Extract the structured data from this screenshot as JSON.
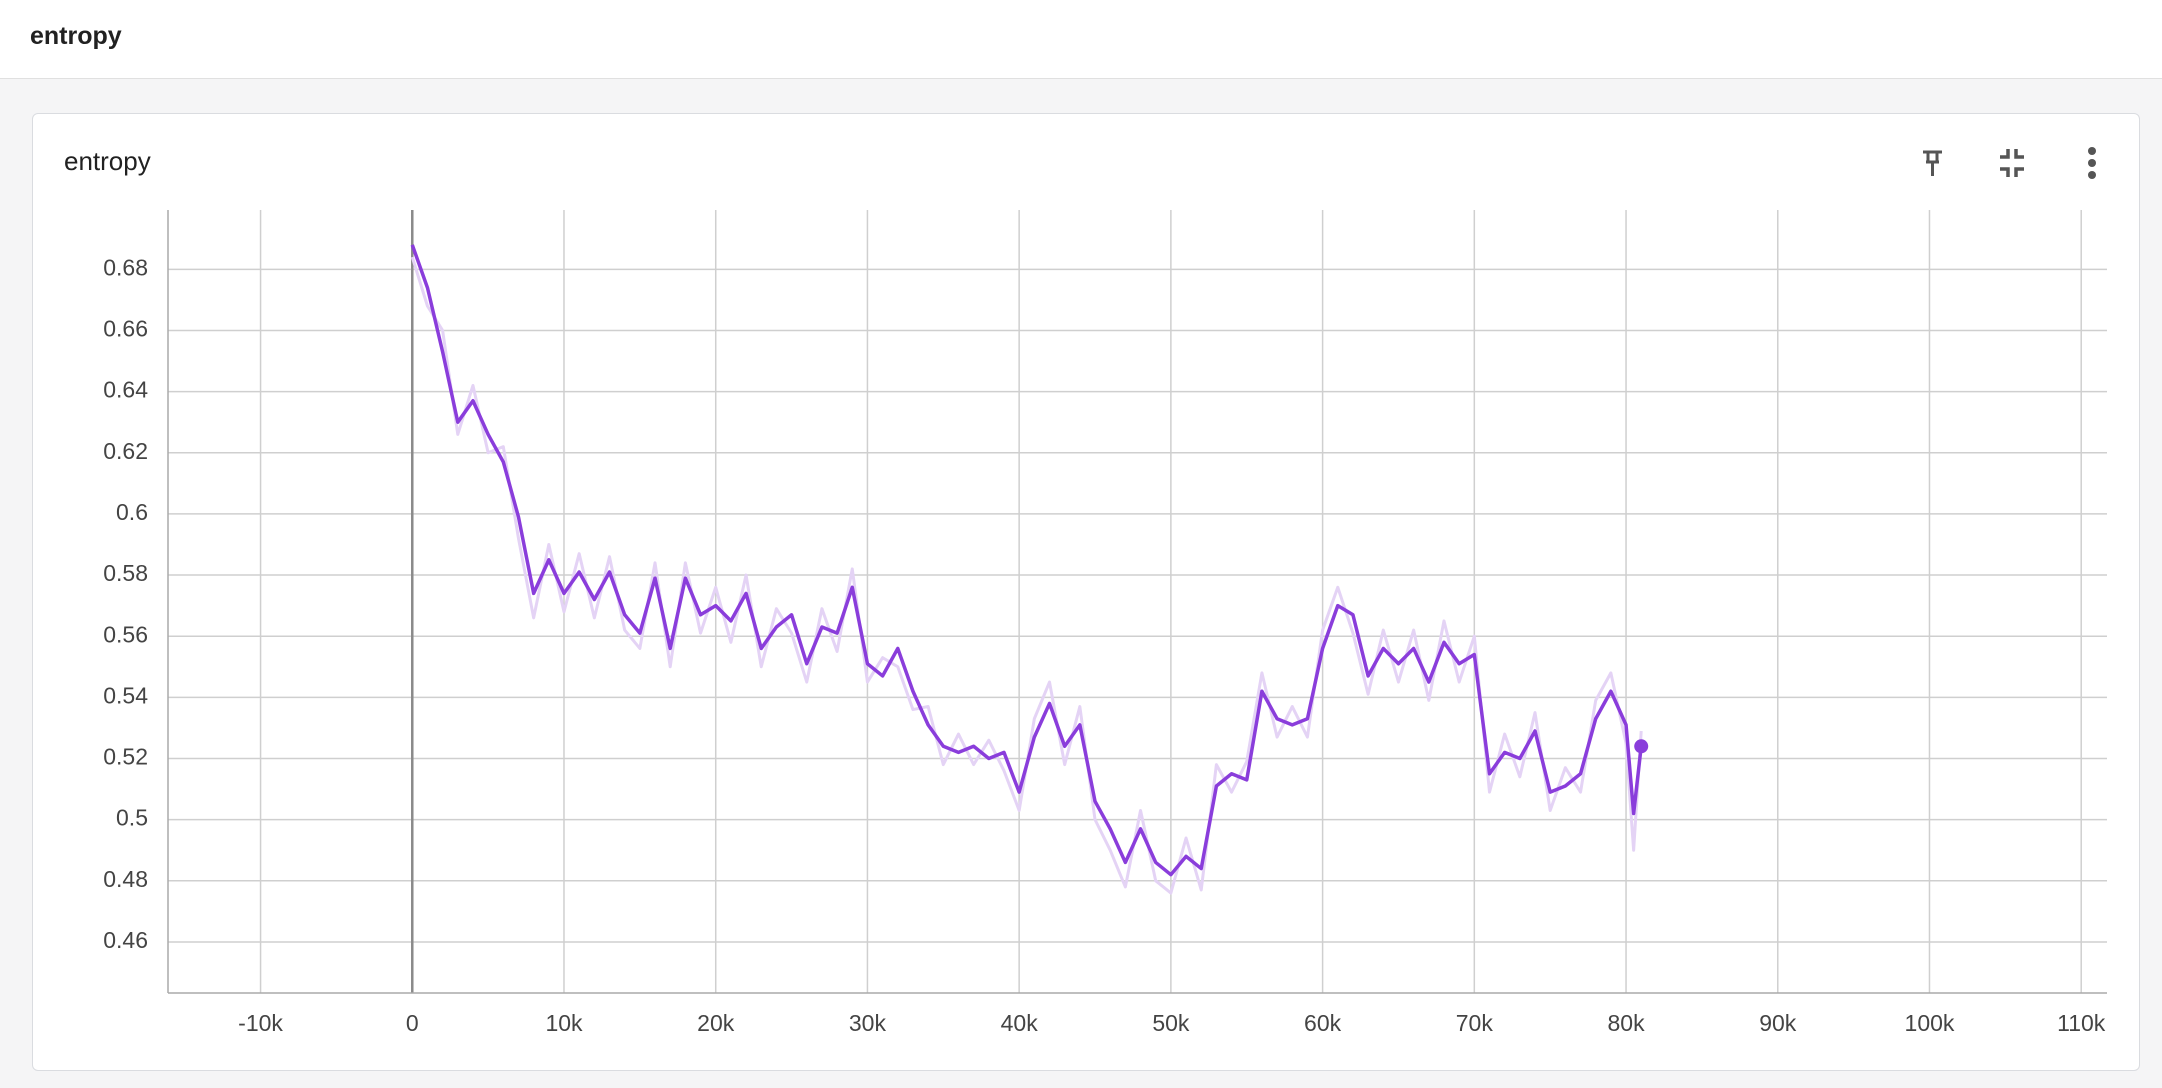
{
  "header": {
    "title": "entropy"
  },
  "chart_data": {
    "type": "line",
    "title": "entropy",
    "x": [
      0,
      1000,
      2000,
      3000,
      4000,
      5000,
      6000,
      7000,
      8000,
      9000,
      10000,
      11000,
      12000,
      13000,
      14000,
      15000,
      16000,
      17000,
      18000,
      19000,
      20000,
      21000,
      22000,
      23000,
      24000,
      25000,
      26000,
      27000,
      28000,
      29000,
      30000,
      31000,
      32000,
      33000,
      34000,
      35000,
      36000,
      37000,
      38000,
      39000,
      40000,
      41000,
      42000,
      43000,
      44000,
      45000,
      46000,
      47000,
      48000,
      49000,
      50000,
      51000,
      52000,
      53000,
      54000,
      55000,
      56000,
      57000,
      58000,
      59000,
      60000,
      61000,
      62000,
      63000,
      64000,
      65000,
      66000,
      67000,
      68000,
      69000,
      70000,
      71000,
      72000,
      73000,
      74000,
      75000,
      76000,
      77000,
      78000,
      79000,
      80000,
      80500,
      81000
    ],
    "series": [
      {
        "color": "#e4d3f5",
        "values": [
          0.684,
          0.668,
          0.66,
          0.626,
          0.642,
          0.62,
          0.622,
          0.592,
          0.566,
          0.59,
          0.568,
          0.587,
          0.566,
          0.586,
          0.562,
          0.556,
          0.584,
          0.55,
          0.584,
          0.561,
          0.576,
          0.558,
          0.58,
          0.55,
          0.569,
          0.561,
          0.545,
          0.569,
          0.555,
          0.582,
          0.545,
          0.553,
          0.55,
          0.536,
          0.537,
          0.518,
          0.528,
          0.518,
          0.526,
          0.516,
          0.503,
          0.533,
          0.545,
          0.518,
          0.537,
          0.5,
          0.49,
          0.478,
          0.503,
          0.48,
          0.476,
          0.494,
          0.477,
          0.518,
          0.509,
          0.519,
          0.548,
          0.527,
          0.537,
          0.527,
          0.562,
          0.576,
          0.561,
          0.541,
          0.562,
          0.545,
          0.562,
          0.539,
          0.565,
          0.545,
          0.56,
          0.509,
          0.528,
          0.514,
          0.535,
          0.503,
          0.517,
          0.509,
          0.539,
          0.548,
          0.525,
          0.49,
          0.529
        ]
      },
      {
        "color": "#8a3ddb",
        "values": [
          0.688,
          0.674,
          0.653,
          0.63,
          0.637,
          0.626,
          0.617,
          0.599,
          0.574,
          0.585,
          0.574,
          0.581,
          0.572,
          0.581,
          0.567,
          0.561,
          0.579,
          0.556,
          0.579,
          0.567,
          0.57,
          0.565,
          0.574,
          0.556,
          0.563,
          0.567,
          0.551,
          0.563,
          0.561,
          0.576,
          0.551,
          0.547,
          0.556,
          0.542,
          0.531,
          0.524,
          0.522,
          0.524,
          0.52,
          0.522,
          0.509,
          0.527,
          0.538,
          0.524,
          0.531,
          0.506,
          0.497,
          0.486,
          0.497,
          0.486,
          0.482,
          0.488,
          0.484,
          0.511,
          0.515,
          0.513,
          0.542,
          0.533,
          0.531,
          0.533,
          0.556,
          0.57,
          0.567,
          0.547,
          0.556,
          0.551,
          0.556,
          0.545,
          0.558,
          0.551,
          0.554,
          0.515,
          0.522,
          0.52,
          0.529,
          0.509,
          0.511,
          0.515,
          0.533,
          0.542,
          0.531,
          0.502,
          0.524
        ]
      }
    ],
    "xlim": [
      -16100,
      111700
    ],
    "ylim": [
      0.4433,
      0.6994
    ],
    "xticks": [
      {
        "value": -10000,
        "label": "-10k"
      },
      0,
      {
        "value": 10000,
        "label": "10k"
      },
      {
        "value": 20000,
        "label": "20k"
      },
      {
        "value": 30000,
        "label": "30k"
      },
      {
        "value": 40000,
        "label": "40k"
      },
      {
        "value": 50000,
        "label": "50k"
      },
      {
        "value": 60000,
        "label": "60k"
      },
      {
        "value": 70000,
        "label": "70k"
      },
      {
        "value": 80000,
        "label": "80k"
      },
      {
        "value": 90000,
        "label": "90k"
      },
      {
        "value": 100000,
        "label": "100k"
      },
      {
        "value": 110000,
        "label": "110k"
      }
    ],
    "yticks": [
      0.46,
      0.48,
      0.5,
      0.52,
      0.54,
      0.56,
      0.58,
      0.6,
      0.62,
      0.64,
      0.66,
      0.68
    ],
    "grid": true
  }
}
